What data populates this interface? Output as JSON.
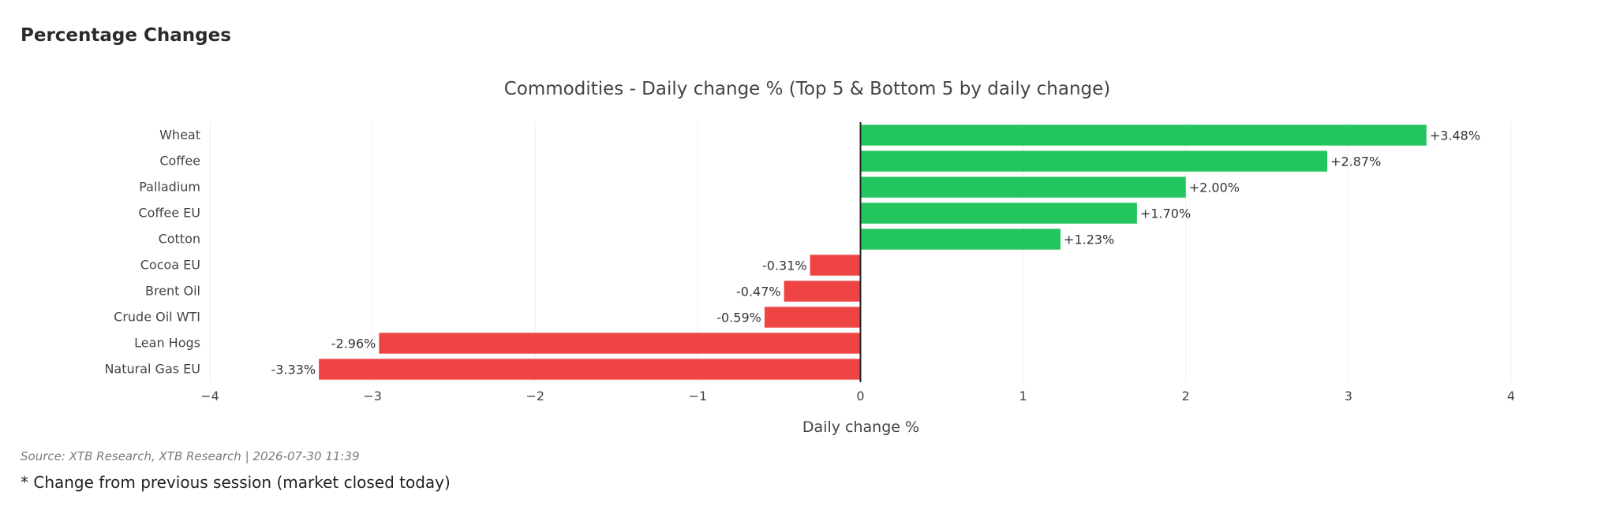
{
  "page": {
    "heading": "Percentage Changes",
    "source": "Source: XTB Research, XTB Research | 2026-07-30 11:39",
    "footnote": "* Change from previous session (market closed today)"
  },
  "chart_data": {
    "type": "bar",
    "orientation": "horizontal",
    "title": "Commodities - Daily change % (Top 5 & Bottom 5 by daily change)",
    "xlabel": "Daily change %",
    "ylabel": "",
    "xlim": [
      -4,
      4
    ],
    "xticks": [
      -4,
      -3,
      -2,
      -1,
      0,
      1,
      2,
      3,
      4
    ],
    "xtick_labels": [
      "−4",
      "−3",
      "−2",
      "−1",
      "0",
      "1",
      "2",
      "3",
      "4"
    ],
    "grid": "vertical",
    "categories": [
      "Wheat",
      "Coffee",
      "Palladium",
      "Coffee EU",
      "Cotton",
      "Cocoa EU",
      "Brent Oil",
      "Crude Oil WTI",
      "Lean Hogs",
      "Natural Gas EU"
    ],
    "values": [
      3.48,
      2.87,
      2.0,
      1.7,
      1.23,
      -0.31,
      -0.47,
      -0.59,
      -2.96,
      -3.33
    ],
    "data_labels": [
      "+3.48%",
      "+2.87%",
      "+2.00%",
      "+1.70%",
      "+1.23%",
      "-0.31%",
      "-0.47%",
      "-0.59%",
      "-2.96%",
      "-3.33%"
    ],
    "colors": {
      "positive": "#22c55e",
      "negative": "#ef4444",
      "zero_line": "#222222",
      "grid": "#eeeeee"
    }
  }
}
